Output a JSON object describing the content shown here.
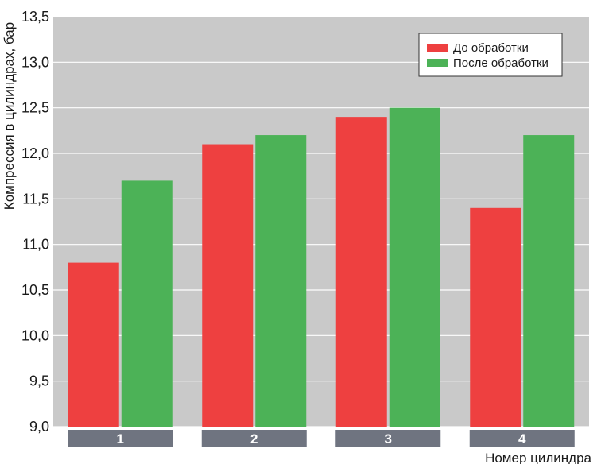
{
  "chart_data": {
    "type": "bar",
    "title": "",
    "xlabel": "Номер цилиндра",
    "ylabel": "Компрессия в цилиндрах, бар",
    "categories": [
      "1",
      "2",
      "3",
      "4"
    ],
    "series": [
      {
        "name": "До обработки",
        "color": "#ee4040",
        "values": [
          10.8,
          12.1,
          12.4,
          11.4
        ]
      },
      {
        "name": "После обработки",
        "color": "#4cb257",
        "values": [
          11.7,
          12.2,
          12.5,
          12.2
        ]
      }
    ],
    "ylim": [
      9.0,
      13.5
    ],
    "yticks": [
      "9,0",
      "9,5",
      "10,0",
      "10,5",
      "11,0",
      "11,5",
      "12,0",
      "12,5",
      "13,0",
      "13,5"
    ],
    "ytick_values": [
      9.0,
      9.5,
      10.0,
      10.5,
      11.0,
      11.5,
      12.0,
      12.5,
      13.0,
      13.5
    ],
    "grid": true,
    "legend_position": "top-right",
    "plot_background": "#c9c9c9",
    "category_tab_color": "#6f7480"
  }
}
